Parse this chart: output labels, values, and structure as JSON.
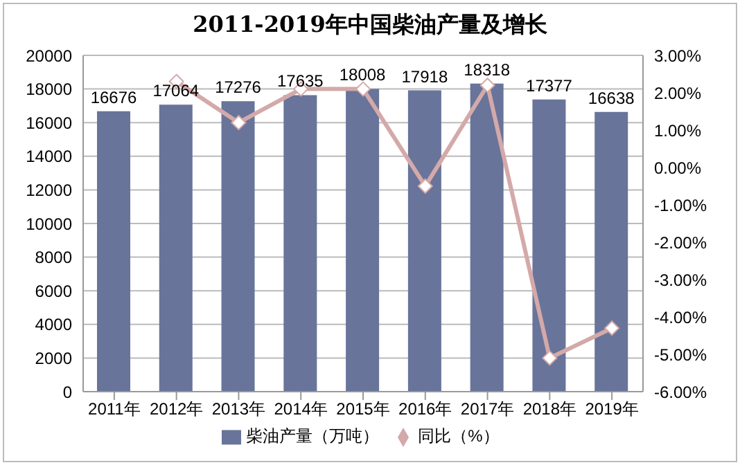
{
  "chart_data": {
    "type": "bar",
    "title": "2011-2019年中国柴油产量及增长",
    "categories": [
      "2011年",
      "2012年",
      "2013年",
      "2014年",
      "2015年",
      "2016年",
      "2017年",
      "2018年",
      "2019年"
    ],
    "series": [
      {
        "name": "柴油产量（万吨）",
        "color": "#68749a",
        "values": [
          16676,
          17064,
          17276,
          17635,
          18008,
          17918,
          18318,
          17377,
          16638
        ],
        "value_labels": [
          "16676",
          "17064",
          "17276",
          "17635",
          "18008",
          "17918",
          "18318",
          "17377",
          "16638"
        ]
      },
      {
        "name": "同比（%）",
        "type": "line",
        "axis": "y2",
        "color": "#d4a9a9",
        "marker": "diamond",
        "line_style": "solid",
        "values": [
          null,
          2.3,
          1.2,
          2.1,
          2.1,
          -0.5,
          2.2,
          -5.1,
          -4.3
        ]
      }
    ],
    "ylim": [
      0,
      20000
    ],
    "yticks": [
      0,
      2000,
      4000,
      6000,
      8000,
      10000,
      12000,
      14000,
      16000,
      18000,
      20000
    ],
    "y2lim": [
      -6,
      3
    ],
    "y2ticks": [
      {
        "value": -6,
        "label": "-6.00%"
      },
      {
        "value": -5,
        "label": "-5.00%"
      },
      {
        "value": -4,
        "label": "-4.00%"
      },
      {
        "value": -3,
        "label": "-3.00%"
      },
      {
        "value": -2,
        "label": "-2.00%"
      },
      {
        "value": -1,
        "label": "-1.00%"
      },
      {
        "value": 0,
        "label": "0.00%"
      },
      {
        "value": 1,
        "label": "1.00%"
      },
      {
        "value": 2,
        "label": "2.00%"
      },
      {
        "value": 3,
        "label": "3.00%"
      }
    ],
    "grid": "y",
    "legend": "bottom"
  }
}
